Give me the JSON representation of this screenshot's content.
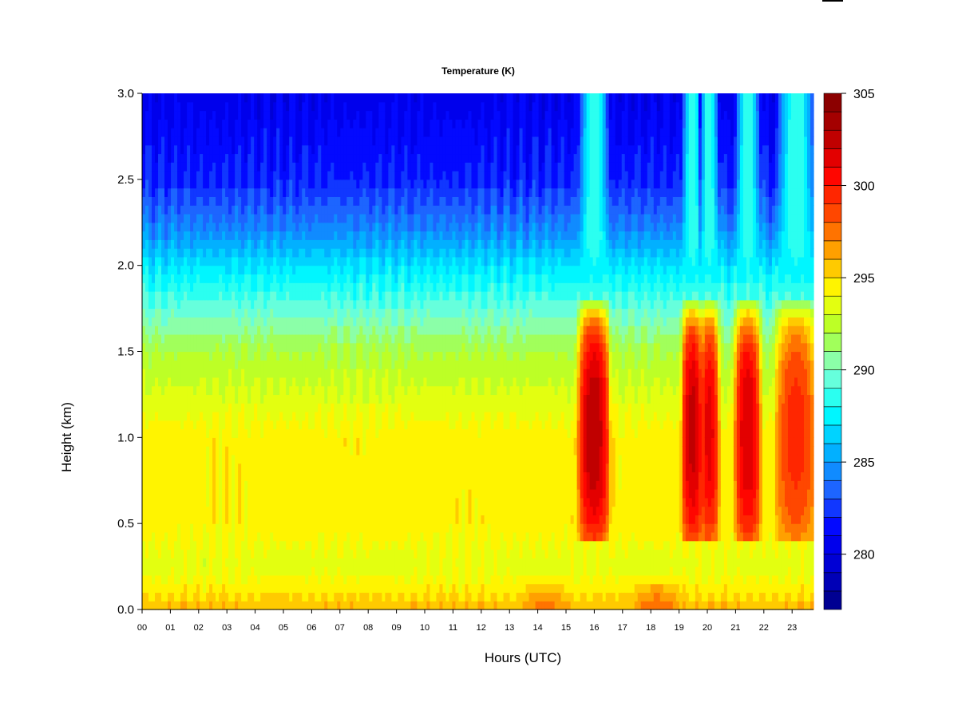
{
  "chart_data": {
    "type": "heatmap",
    "title": "Temperature (K)",
    "xlabel": "Hours (UTC)",
    "ylabel": "Height (km)",
    "x_range": [
      0,
      24
    ],
    "y_range": [
      0.0,
      3.0
    ],
    "x_ticks": [
      "00",
      "01",
      "02",
      "03",
      "04",
      "05",
      "06",
      "07",
      "08",
      "09",
      "10",
      "11",
      "12",
      "13",
      "14",
      "15",
      "16",
      "17",
      "18",
      "19",
      "20",
      "21",
      "22",
      "23"
    ],
    "y_ticks": [
      "0.0",
      "0.5",
      "1.0",
      "1.5",
      "2.0",
      "2.5",
      "3.0"
    ],
    "colorbar": {
      "range": [
        277,
        305
      ],
      "ticks": [
        "280",
        "285",
        "290",
        "295",
        "300",
        "305"
      ],
      "levels": 28,
      "palette": [
        "#000080",
        "#0000cd",
        "#0000ff",
        "#1e64ff",
        "#00b4ff",
        "#00ffff",
        "#7fffd4",
        "#adff2f",
        "#ffff00",
        "#ffa500",
        "#ff4500",
        "#ff0000",
        "#b40000",
        "#800000"
      ]
    },
    "field": {
      "profile_heights_km": [
        0.0,
        0.1,
        0.25,
        0.5,
        1.0,
        1.5,
        1.8,
        2.0,
        2.2,
        2.5,
        3.0
      ],
      "profile_temps_K": [
        296,
        294.8,
        293.5,
        294.5,
        294.5,
        292,
        289,
        287,
        284.5,
        282,
        280.5
      ],
      "warm_bands": [
        {
          "start": 15.7,
          "end": 16.6,
          "peak_K": 303
        },
        {
          "start": 19.4,
          "end": 19.95,
          "peak_K": 302.5
        },
        {
          "start": 20.05,
          "end": 20.5,
          "peak_K": 301.5
        },
        {
          "start": 21.3,
          "end": 22.0,
          "peak_K": 302
        },
        {
          "start": 22.75,
          "end": 24.0,
          "peak_K": 299.5
        }
      ],
      "surface_warm_periods": [
        {
          "start": 13.5,
          "end": 15.3,
          "peak_K": 297.5
        },
        {
          "start": 17.5,
          "end": 19.3,
          "peak_K": 298
        }
      ]
    }
  }
}
